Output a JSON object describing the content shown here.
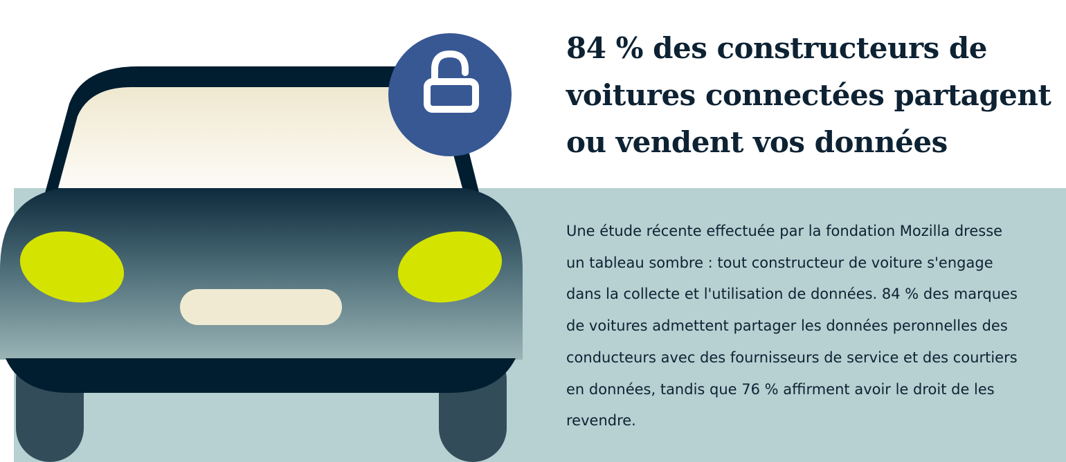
{
  "headline": "84 % des constructeurs de voitures connectées partagent ou vendent vos données",
  "body": "Une étude récente effectuée par la fondation Mozilla dresse un tableau sombre : tout constructeur de voiture s'engage dans la collecte et l'utilisation de données. 84 % des marques de voitures admettent partager les données peronnelles des conducteurs avec des fournisseurs de service et des courtiers en données, tandis que 76 % affirment avoir le droit de les revendre.",
  "illustration": {
    "icon": "unlocked-padlock-icon",
    "subject": "car-front-icon"
  },
  "colors": {
    "panel": "#b7d0d1",
    "navy": "#001e30",
    "lock_badge": "#375893",
    "headlight": "#d4e300",
    "windshield": "#f0ead2"
  }
}
